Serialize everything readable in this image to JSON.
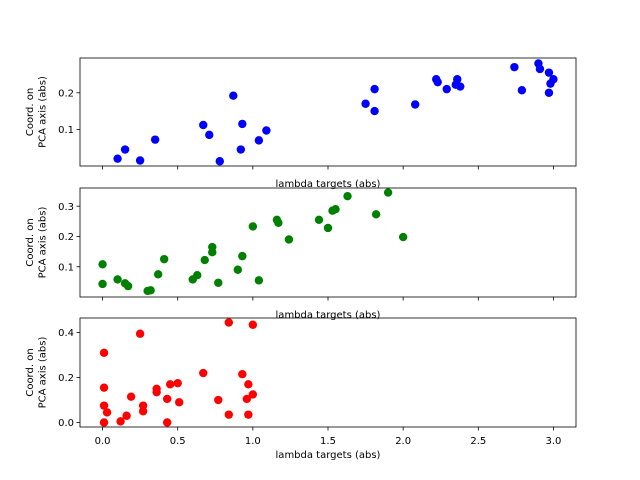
{
  "chart_data": [
    {
      "type": "scatter",
      "color": "#0000ff",
      "xlabel": "lambda targets (abs)",
      "ylabel": "Coord. on\nPCA axis (abs)",
      "xlim": [
        -0.15,
        3.15
      ],
      "ylim": [
        0.0,
        0.295
      ],
      "xticks": [
        0.0,
        0.5,
        1.0,
        1.5,
        2.0,
        2.5,
        3.0
      ],
      "show_xticklabels": false,
      "yticks": [
        0.1,
        0.2
      ],
      "ytick_labels": [
        "0.1",
        "0.2"
      ],
      "grid": false,
      "points": [
        {
          "x": 0.1,
          "y": 0.02
        },
        {
          "x": 0.15,
          "y": 0.045
        },
        {
          "x": 0.25,
          "y": 0.015
        },
        {
          "x": 0.35,
          "y": 0.072
        },
        {
          "x": 0.67,
          "y": 0.112
        },
        {
          "x": 0.71,
          "y": 0.085
        },
        {
          "x": 0.78,
          "y": 0.013
        },
        {
          "x": 0.87,
          "y": 0.192
        },
        {
          "x": 0.92,
          "y": 0.045
        },
        {
          "x": 0.93,
          "y": 0.115
        },
        {
          "x": 1.04,
          "y": 0.07
        },
        {
          "x": 1.09,
          "y": 0.097
        },
        {
          "x": 1.75,
          "y": 0.17
        },
        {
          "x": 1.81,
          "y": 0.21
        },
        {
          "x": 1.81,
          "y": 0.15
        },
        {
          "x": 2.08,
          "y": 0.168
        },
        {
          "x": 2.22,
          "y": 0.237
        },
        {
          "x": 2.23,
          "y": 0.229
        },
        {
          "x": 2.29,
          "y": 0.21
        },
        {
          "x": 2.35,
          "y": 0.222
        },
        {
          "x": 2.36,
          "y": 0.237
        },
        {
          "x": 2.38,
          "y": 0.217
        },
        {
          "x": 2.74,
          "y": 0.27
        },
        {
          "x": 2.79,
          "y": 0.207
        },
        {
          "x": 2.9,
          "y": 0.28
        },
        {
          "x": 2.91,
          "y": 0.265
        },
        {
          "x": 2.97,
          "y": 0.255
        },
        {
          "x": 2.97,
          "y": 0.2
        },
        {
          "x": 2.98,
          "y": 0.225
        },
        {
          "x": 3.0,
          "y": 0.237
        }
      ]
    },
    {
      "type": "scatter",
      "color": "#008000",
      "xlabel": "lambda targets (abs)",
      "ylabel": "Coord. on\nPCA axis (abs)",
      "xlim": [
        -0.15,
        3.15
      ],
      "ylim": [
        0.0,
        0.36
      ],
      "xticks": [
        0.0,
        0.5,
        1.0,
        1.5,
        2.0,
        2.5,
        3.0
      ],
      "show_xticklabels": false,
      "yticks": [
        0.1,
        0.2,
        0.3
      ],
      "ytick_labels": [
        "0.1",
        "0.2",
        "0.3"
      ],
      "grid": false,
      "points": [
        {
          "x": 0.0,
          "y": 0.108
        },
        {
          "x": 0.0,
          "y": 0.043
        },
        {
          "x": 0.1,
          "y": 0.058
        },
        {
          "x": 0.15,
          "y": 0.045
        },
        {
          "x": 0.17,
          "y": 0.036
        },
        {
          "x": 0.3,
          "y": 0.02
        },
        {
          "x": 0.32,
          "y": 0.022
        },
        {
          "x": 0.37,
          "y": 0.075
        },
        {
          "x": 0.41,
          "y": 0.125
        },
        {
          "x": 0.6,
          "y": 0.058
        },
        {
          "x": 0.63,
          "y": 0.072
        },
        {
          "x": 0.68,
          "y": 0.122
        },
        {
          "x": 0.73,
          "y": 0.148
        },
        {
          "x": 0.73,
          "y": 0.165
        },
        {
          "x": 0.77,
          "y": 0.047
        },
        {
          "x": 0.9,
          "y": 0.09
        },
        {
          "x": 0.93,
          "y": 0.135
        },
        {
          "x": 1.0,
          "y": 0.233
        },
        {
          "x": 1.04,
          "y": 0.055
        },
        {
          "x": 1.16,
          "y": 0.255
        },
        {
          "x": 1.17,
          "y": 0.245
        },
        {
          "x": 1.24,
          "y": 0.19
        },
        {
          "x": 1.44,
          "y": 0.255
        },
        {
          "x": 1.5,
          "y": 0.228
        },
        {
          "x": 1.53,
          "y": 0.285
        },
        {
          "x": 1.55,
          "y": 0.29
        },
        {
          "x": 1.63,
          "y": 0.333
        },
        {
          "x": 1.82,
          "y": 0.273
        },
        {
          "x": 1.9,
          "y": 0.345
        },
        {
          "x": 2.0,
          "y": 0.198
        }
      ]
    },
    {
      "type": "scatter",
      "color": "#ff0000",
      "xlabel": "lambda targets (abs)",
      "ylabel": "Coord. on\nPCA axis (abs)",
      "xlim": [
        -0.15,
        3.15
      ],
      "ylim": [
        -0.02,
        0.465
      ],
      "xticks": [
        0.0,
        0.5,
        1.0,
        1.5,
        2.0,
        2.5,
        3.0
      ],
      "xtick_labels": [
        "0.0",
        "0.5",
        "1.0",
        "1.5",
        "2.0",
        "2.5",
        "3.0"
      ],
      "show_xticklabels": true,
      "yticks": [
        0.0,
        0.2,
        0.4
      ],
      "ytick_labels": [
        "0.0",
        "0.2",
        "0.4"
      ],
      "grid": false,
      "points": [
        {
          "x": 0.01,
          "y": 0.31
        },
        {
          "x": 0.01,
          "y": 0.155
        },
        {
          "x": 0.01,
          "y": 0.075
        },
        {
          "x": 0.03,
          "y": 0.045
        },
        {
          "x": 0.01,
          "y": 0.0
        },
        {
          "x": 0.12,
          "y": 0.005
        },
        {
          "x": 0.16,
          "y": 0.03
        },
        {
          "x": 0.19,
          "y": 0.115
        },
        {
          "x": 0.25,
          "y": 0.395
        },
        {
          "x": 0.27,
          "y": 0.075
        },
        {
          "x": 0.27,
          "y": 0.05
        },
        {
          "x": 0.36,
          "y": 0.15
        },
        {
          "x": 0.36,
          "y": 0.135
        },
        {
          "x": 0.43,
          "y": 0.105
        },
        {
          "x": 0.45,
          "y": 0.17
        },
        {
          "x": 0.43,
          "y": 0.0
        },
        {
          "x": 0.5,
          "y": 0.175
        },
        {
          "x": 0.51,
          "y": 0.09
        },
        {
          "x": 0.67,
          "y": 0.22
        },
        {
          "x": 0.77,
          "y": 0.1
        },
        {
          "x": 0.84,
          "y": 0.445
        },
        {
          "x": 0.84,
          "y": 0.035
        },
        {
          "x": 0.93,
          "y": 0.215
        },
        {
          "x": 0.96,
          "y": 0.105
        },
        {
          "x": 0.97,
          "y": 0.17
        },
        {
          "x": 0.97,
          "y": 0.035
        },
        {
          "x": 1.0,
          "y": 0.125
        },
        {
          "x": 1.0,
          "y": 0.435
        }
      ]
    }
  ]
}
